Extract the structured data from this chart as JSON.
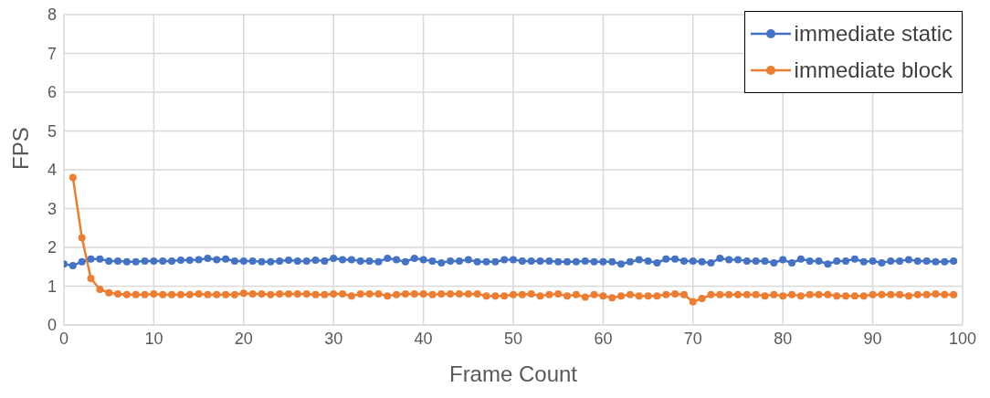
{
  "chart_data": {
    "type": "line",
    "xlabel": "Frame Count",
    "ylabel": "FPS",
    "x": [
      0,
      1,
      2,
      3,
      4,
      5,
      6,
      7,
      8,
      9,
      10,
      11,
      12,
      13,
      14,
      15,
      16,
      17,
      18,
      19,
      20,
      21,
      22,
      23,
      24,
      25,
      26,
      27,
      28,
      29,
      30,
      31,
      32,
      33,
      34,
      35,
      36,
      37,
      38,
      39,
      40,
      41,
      42,
      43,
      44,
      45,
      46,
      47,
      48,
      49,
      50,
      51,
      52,
      53,
      54,
      55,
      56,
      57,
      58,
      59,
      60,
      61,
      62,
      63,
      64,
      65,
      66,
      67,
      68,
      69,
      70,
      71,
      72,
      73,
      74,
      75,
      76,
      77,
      78,
      79,
      80,
      81,
      82,
      83,
      84,
      85,
      86,
      87,
      88,
      89,
      90,
      91,
      92,
      93,
      94,
      95,
      96,
      97,
      98,
      99
    ],
    "series": [
      {
        "name": "immediate static",
        "color": "#4472c4",
        "values": [
          1.57,
          1.53,
          1.63,
          1.7,
          1.7,
          1.65,
          1.65,
          1.63,
          1.63,
          1.65,
          1.65,
          1.65,
          1.65,
          1.67,
          1.67,
          1.68,
          1.72,
          1.68,
          1.7,
          1.65,
          1.65,
          1.65,
          1.63,
          1.63,
          1.65,
          1.67,
          1.65,
          1.65,
          1.67,
          1.65,
          1.72,
          1.68,
          1.68,
          1.65,
          1.65,
          1.63,
          1.72,
          1.68,
          1.63,
          1.72,
          1.68,
          1.65,
          1.6,
          1.65,
          1.65,
          1.68,
          1.63,
          1.63,
          1.63,
          1.68,
          1.68,
          1.65,
          1.65,
          1.65,
          1.65,
          1.63,
          1.63,
          1.63,
          1.65,
          1.63,
          1.63,
          1.63,
          1.57,
          1.63,
          1.68,
          1.65,
          1.6,
          1.7,
          1.7,
          1.65,
          1.65,
          1.63,
          1.6,
          1.72,
          1.68,
          1.68,
          1.65,
          1.65,
          1.65,
          1.6,
          1.68,
          1.6,
          1.7,
          1.65,
          1.65,
          1.57,
          1.65,
          1.65,
          1.7,
          1.63,
          1.65,
          1.6,
          1.65,
          1.65,
          1.68,
          1.65,
          1.65,
          1.63,
          1.63,
          1.65
        ]
      },
      {
        "name": "immediate block",
        "color": "#ed7d31",
        "values": [
          null,
          3.8,
          2.25,
          1.2,
          0.92,
          0.83,
          0.8,
          0.78,
          0.78,
          0.78,
          0.8,
          0.78,
          0.78,
          0.78,
          0.78,
          0.8,
          0.78,
          0.78,
          0.78,
          0.78,
          0.82,
          0.8,
          0.8,
          0.78,
          0.8,
          0.8,
          0.8,
          0.8,
          0.78,
          0.78,
          0.8,
          0.8,
          0.75,
          0.8,
          0.8,
          0.8,
          0.75,
          0.78,
          0.8,
          0.8,
          0.8,
          0.78,
          0.8,
          0.8,
          0.8,
          0.8,
          0.8,
          0.75,
          0.75,
          0.75,
          0.78,
          0.78,
          0.8,
          0.75,
          0.78,
          0.8,
          0.75,
          0.78,
          0.72,
          0.78,
          0.75,
          0.7,
          0.75,
          0.78,
          0.75,
          0.75,
          0.75,
          0.78,
          0.8,
          0.78,
          0.6,
          0.68,
          0.78,
          0.78,
          0.78,
          0.78,
          0.78,
          0.78,
          0.75,
          0.78,
          0.75,
          0.78,
          0.75,
          0.78,
          0.78,
          0.78,
          0.75,
          0.75,
          0.75,
          0.75,
          0.78,
          0.78,
          0.78,
          0.78,
          0.75,
          0.78,
          0.78,
          0.8,
          0.78,
          0.78
        ]
      }
    ],
    "xlim": [
      0,
      100
    ],
    "xticks": [
      0,
      10,
      20,
      30,
      40,
      50,
      60,
      70,
      80,
      90,
      100
    ],
    "ylim": [
      0,
      8
    ],
    "yticks": [
      0,
      1,
      2,
      3,
      4,
      5,
      6,
      7,
      8
    ],
    "grid": true,
    "legend": "top right",
    "marker": "circle",
    "line_style": "solid"
  }
}
